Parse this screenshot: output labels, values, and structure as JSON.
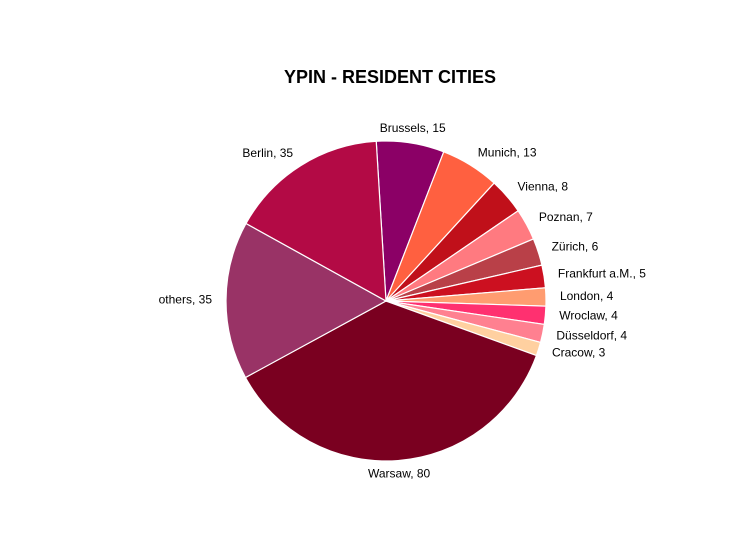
{
  "chart_data": {
    "type": "pie",
    "title": "YPIN - RESIDENT CITIES",
    "labels": [
      "Brussels, 15",
      "Munich, 13",
      "Vienna, 8",
      "Poznan, 7",
      "Zürich, 6",
      "Frankfurt a.M., 5",
      "London, 4",
      "Wroclaw, 4",
      "Düsseldorf, 4",
      "Cracow, 3",
      "Warsaw, 80",
      "others, 35",
      "Berlin, 35"
    ],
    "values": [
      15,
      13,
      8,
      7,
      6,
      5,
      4,
      4,
      4,
      3,
      80,
      35,
      35
    ],
    "colors": [
      "#8b0066",
      "#ff6040",
      "#c0101a",
      "#ff7a80",
      "#b94048",
      "#cc1020",
      "#ff9c70",
      "#ff3070",
      "#ff8090",
      "#ffd0a0",
      "#7a0020",
      "#993366",
      "#b30a45"
    ]
  }
}
